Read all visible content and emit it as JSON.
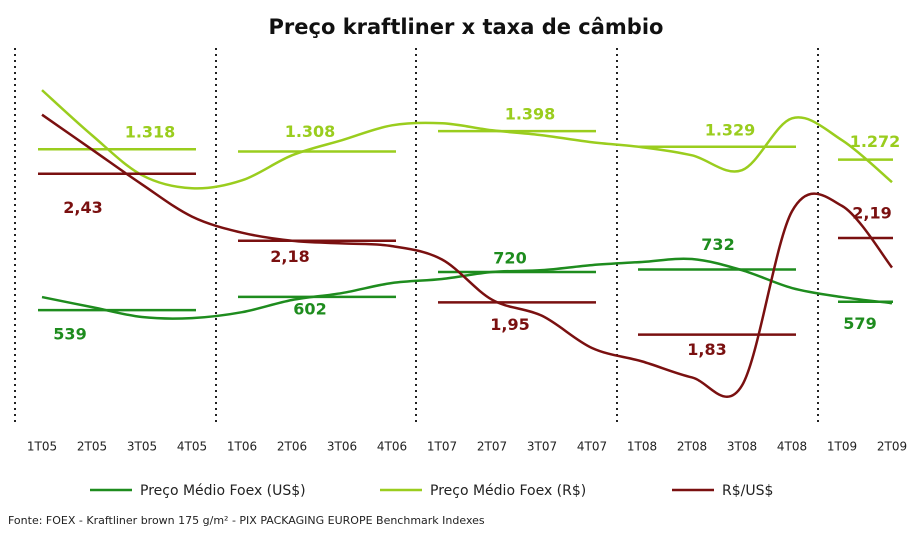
{
  "chart_data": {
    "type": "line",
    "title": "Preço kraftliner x taxa de câmbio",
    "categories": [
      "1T05",
      "2T05",
      "3T05",
      "4T05",
      "1T06",
      "2T06",
      "3T06",
      "4T06",
      "1T07",
      "2T07",
      "3T07",
      "4T07",
      "1T08",
      "2T08",
      "3T08",
      "4T08",
      "1T09",
      "2T09"
    ],
    "series": [
      {
        "name": "Preço Médio Foex (US$)",
        "color": "#1e8c1e",
        "ylim": [
          40,
          1800
        ],
        "values": [
          601,
          553,
          506,
          501,
          529,
          587,
          620,
          668,
          687,
          720,
          729,
          753,
          768,
          782,
          729,
          644,
          601,
          572
        ],
        "averages": [
          539,
          602,
          720,
          732,
          579
        ],
        "average_labels": [
          "539",
          "602",
          "720",
          "732",
          "579"
        ]
      },
      {
        "name": "Preço Médio Foex (R$)",
        "color": "#9acd1e",
        "ylim": [
          140,
          1780
        ],
        "values": [
          1580,
          1380,
          1203,
          1145,
          1180,
          1291,
          1358,
          1424,
          1433,
          1402,
          1380,
          1349,
          1327,
          1291,
          1225,
          1455,
          1358,
          1172
        ],
        "averages": [
          1318,
          1308,
          1398,
          1329,
          1272
        ],
        "average_labels": [
          "1.318",
          "1.308",
          "1.398",
          "1.329",
          "1.272"
        ]
      },
      {
        "name": "R$/US$",
        "color": "#7a1010",
        "ylim": [
          1.53,
          2.91
        ],
        "values": [
          2.65,
          2.52,
          2.39,
          2.27,
          2.21,
          2.18,
          2.17,
          2.16,
          2.11,
          1.96,
          1.9,
          1.78,
          1.73,
          1.67,
          1.64,
          2.29,
          2.31,
          2.08
        ],
        "averages": [
          2.43,
          2.18,
          1.95,
          1.83,
          2.19
        ],
        "average_labels": [
          "2,43",
          "2,18",
          "1,95",
          "1,83",
          "2,19"
        ]
      }
    ],
    "source": "Fonte: FOEX - Kraftliner brown 175 g/m² - PIX PACKAGING EUROPE Benchmark Indexes"
  }
}
